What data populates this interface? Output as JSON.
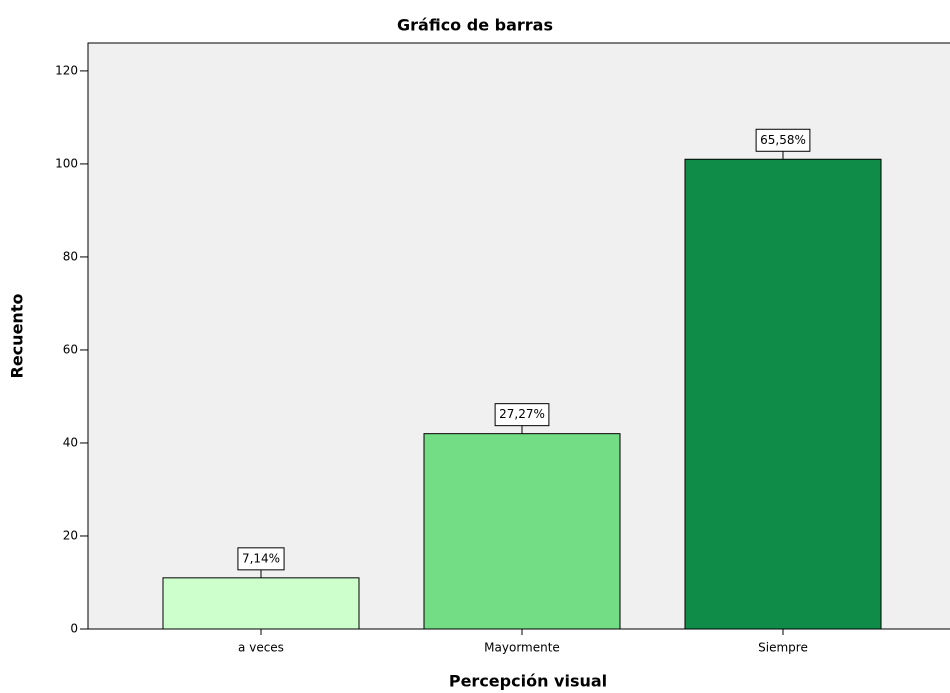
{
  "chart_data": {
    "type": "bar",
    "title": "Gráfico de barras",
    "x_label": "Percepción visual",
    "y_label": "Recuento",
    "categories": [
      "a veces",
      "Mayormente",
      "Siempre"
    ],
    "values": [
      11,
      42,
      101
    ],
    "percent_values": [
      7.14,
      27.27,
      65.58
    ],
    "percent_labels": [
      "7,14%",
      "27,27%",
      "65,58%"
    ],
    "colors": [
      "#ccffcc",
      "#73dd85",
      "#0f8c47"
    ],
    "ylim": [
      0,
      126
    ],
    "yticks": [
      0,
      20,
      40,
      60,
      80,
      100,
      120
    ]
  }
}
